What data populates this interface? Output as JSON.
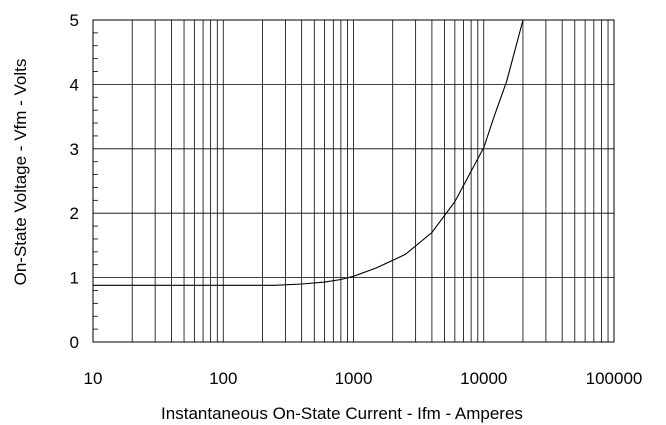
{
  "chart_data": {
    "type": "line",
    "x_scale": "log",
    "y_scale": "linear",
    "xlabel": "Instantaneous On-State Current  -  Ifm  -  Amperes",
    "ylabel": "On-State Voltage  -  Vfm  -  Volts",
    "xlim": [
      10,
      100000
    ],
    "ylim": [
      0,
      5
    ],
    "x_ticks": [
      "10",
      "100",
      "1000",
      "10000",
      "100000"
    ],
    "y_ticks": [
      "0",
      "1",
      "2",
      "3",
      "4",
      "5"
    ],
    "grid": true,
    "legend": "none",
    "series": [
      {
        "x": [
          10,
          100,
          250,
          400,
          600,
          800,
          1000,
          1500,
          2500,
          4000,
          6000,
          8000,
          10000,
          12000,
          15000,
          18000,
          20000
        ],
        "y": [
          0.88,
          0.88,
          0.88,
          0.9,
          0.93,
          0.97,
          1.02,
          1.15,
          1.36,
          1.7,
          2.18,
          2.65,
          3.02,
          3.5,
          4.05,
          4.65,
          5.0
        ]
      }
    ],
    "colors": {
      "line": "#000000",
      "grid": "#000000",
      "background": "#ffffff"
    }
  }
}
